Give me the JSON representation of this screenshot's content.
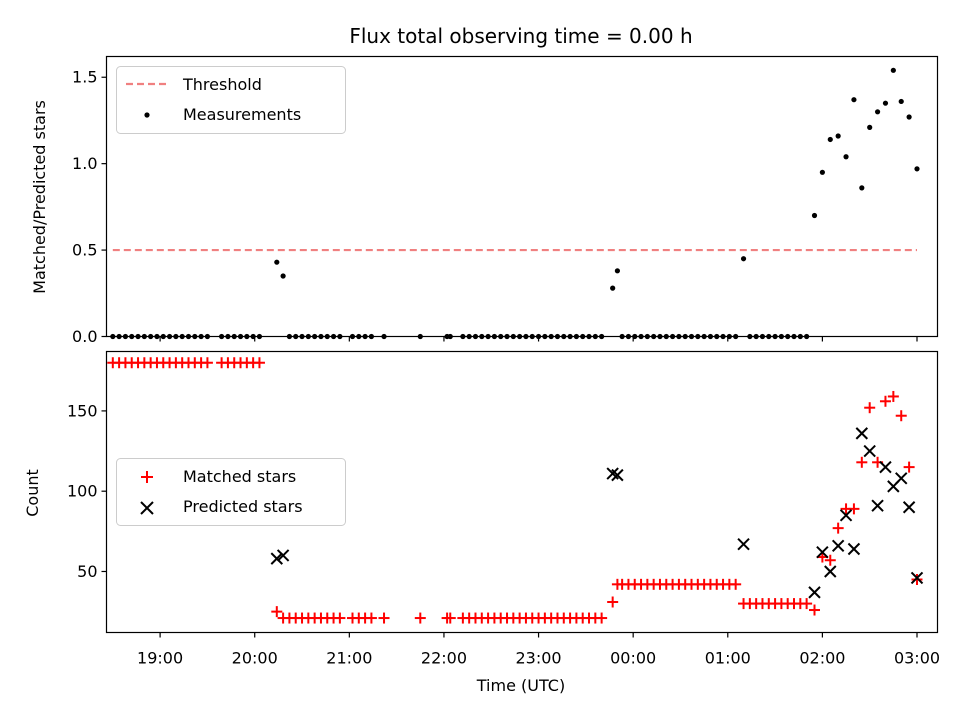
{
  "chart_data": [
    {
      "type": "scatter",
      "title": "Flux total observing time = 0.00 h",
      "xlabel": "",
      "ylabel": "Matched/Predicted stars",
      "xlim": [
        "18:26",
        "03:13"
      ],
      "ylim": [
        0,
        1.62
      ],
      "yticks": [
        0.0,
        0.5,
        1.0,
        1.5
      ],
      "ytick_labels": [
        "0.0",
        "0.5",
        "1.0",
        "1.5"
      ],
      "legend_placement": "top-left",
      "threshold": {
        "name": "Threshold",
        "value": 0.5,
        "x_range": [
          "18:30",
          "03:00"
        ],
        "color": "#f08080"
      },
      "series": [
        {
          "name": "Measurements",
          "color": "#000000",
          "points": [
            [
              "18:30",
              0
            ],
            [
              "18:34",
              0
            ],
            [
              "18:38",
              0
            ],
            [
              "18:42",
              0
            ],
            [
              "18:46",
              0
            ],
            [
              "18:50",
              0
            ],
            [
              "18:54",
              0
            ],
            [
              "18:58",
              0
            ],
            [
              "19:02",
              0
            ],
            [
              "19:06",
              0
            ],
            [
              "19:10",
              0
            ],
            [
              "19:14",
              0
            ],
            [
              "19:18",
              0
            ],
            [
              "19:22",
              0
            ],
            [
              "19:26",
              0
            ],
            [
              "19:30",
              0
            ],
            [
              "19:39",
              0
            ],
            [
              "19:43",
              0
            ],
            [
              "19:47",
              0
            ],
            [
              "19:51",
              0
            ],
            [
              "19:55",
              0
            ],
            [
              "19:59",
              0
            ],
            [
              "20:03",
              0
            ],
            [
              "20:14",
              0.43
            ],
            [
              "20:18",
              0.35
            ],
            [
              "20:22",
              0
            ],
            [
              "20:26",
              0
            ],
            [
              "20:30",
              0
            ],
            [
              "20:34",
              0
            ],
            [
              "20:38",
              0
            ],
            [
              "20:42",
              0
            ],
            [
              "20:46",
              0
            ],
            [
              "20:50",
              0
            ],
            [
              "20:54",
              0
            ],
            [
              "21:02",
              0
            ],
            [
              "21:06",
              0
            ],
            [
              "21:10",
              0
            ],
            [
              "21:14",
              0
            ],
            [
              "21:22",
              0
            ],
            [
              "21:45",
              0
            ],
            [
              "22:02",
              0
            ],
            [
              "22:04",
              0
            ],
            [
              "22:12",
              0
            ],
            [
              "22:16",
              0
            ],
            [
              "22:20",
              0
            ],
            [
              "22:24",
              0
            ],
            [
              "22:28",
              0
            ],
            [
              "22:32",
              0
            ],
            [
              "22:36",
              0
            ],
            [
              "22:40",
              0
            ],
            [
              "22:44",
              0
            ],
            [
              "22:48",
              0
            ],
            [
              "22:52",
              0
            ],
            [
              "22:56",
              0
            ],
            [
              "23:00",
              0
            ],
            [
              "23:04",
              0
            ],
            [
              "23:08",
              0
            ],
            [
              "23:12",
              0
            ],
            [
              "23:16",
              0
            ],
            [
              "23:20",
              0
            ],
            [
              "23:24",
              0
            ],
            [
              "23:28",
              0
            ],
            [
              "23:32",
              0
            ],
            [
              "23:36",
              0
            ],
            [
              "23:40",
              0
            ],
            [
              "23:47",
              0.28
            ],
            [
              "23:50",
              0.38
            ],
            [
              "23:53",
              0
            ],
            [
              "23:57",
              0
            ],
            [
              "00:01",
              0
            ],
            [
              "00:05",
              0
            ],
            [
              "00:09",
              0
            ],
            [
              "00:13",
              0
            ],
            [
              "00:17",
              0
            ],
            [
              "00:21",
              0
            ],
            [
              "00:25",
              0
            ],
            [
              "00:29",
              0
            ],
            [
              "00:33",
              0
            ],
            [
              "00:37",
              0
            ],
            [
              "00:41",
              0
            ],
            [
              "00:45",
              0
            ],
            [
              "00:49",
              0
            ],
            [
              "00:53",
              0
            ],
            [
              "00:57",
              0
            ],
            [
              "01:01",
              0
            ],
            [
              "01:05",
              0
            ],
            [
              "01:10",
              0.45
            ],
            [
              "01:14",
              0
            ],
            [
              "01:18",
              0
            ],
            [
              "01:22",
              0
            ],
            [
              "01:26",
              0
            ],
            [
              "01:30",
              0
            ],
            [
              "01:34",
              0
            ],
            [
              "01:38",
              0
            ],
            [
              "01:42",
              0
            ],
            [
              "01:46",
              0
            ],
            [
              "01:50",
              0
            ],
            [
              "01:55",
              0.7
            ],
            [
              "02:00",
              0.95
            ],
            [
              "02:05",
              1.14
            ],
            [
              "02:10",
              1.16
            ],
            [
              "02:15",
              1.04
            ],
            [
              "02:20",
              1.37
            ],
            [
              "02:25",
              0.86
            ],
            [
              "02:30",
              1.21
            ],
            [
              "02:35",
              1.3
            ],
            [
              "02:40",
              1.35
            ],
            [
              "02:45",
              1.54
            ],
            [
              "02:50",
              1.36
            ],
            [
              "02:55",
              1.27
            ],
            [
              "03:00",
              0.97
            ]
          ]
        }
      ]
    },
    {
      "type": "scatter",
      "title": "",
      "xlabel": "Time (UTC)",
      "ylabel": "Count",
      "xlim": [
        "18:26",
        "03:13"
      ],
      "ylim": [
        12,
        187
      ],
      "yticks": [
        50,
        100,
        150
      ],
      "ytick_labels": [
        "50",
        "100",
        "150"
      ],
      "xticks": [
        "19:00",
        "20:00",
        "21:00",
        "22:00",
        "23:00",
        "00:00",
        "01:00",
        "02:00",
        "03:00"
      ],
      "legend_placement": "center-left",
      "series": [
        {
          "name": "Matched stars",
          "marker": "plus",
          "color": "#ff0000",
          "points": [
            [
              "18:30",
              180
            ],
            [
              "18:34",
              180
            ],
            [
              "18:38",
              180
            ],
            [
              "18:42",
              180
            ],
            [
              "18:46",
              180
            ],
            [
              "18:50",
              180
            ],
            [
              "18:54",
              180
            ],
            [
              "18:58",
              180
            ],
            [
              "19:02",
              180
            ],
            [
              "19:06",
              180
            ],
            [
              "19:10",
              180
            ],
            [
              "19:14",
              180
            ],
            [
              "19:18",
              180
            ],
            [
              "19:22",
              180
            ],
            [
              "19:26",
              180
            ],
            [
              "19:30",
              180
            ],
            [
              "19:39",
              180
            ],
            [
              "19:43",
              180
            ],
            [
              "19:47",
              180
            ],
            [
              "19:51",
              180
            ],
            [
              "19:55",
              180
            ],
            [
              "19:59",
              180
            ],
            [
              "20:03",
              180
            ],
            [
              "20:14",
              25
            ],
            [
              "20:18",
              21
            ],
            [
              "20:22",
              21
            ],
            [
              "20:26",
              21
            ],
            [
              "20:30",
              21
            ],
            [
              "20:34",
              21
            ],
            [
              "20:38",
              21
            ],
            [
              "20:42",
              21
            ],
            [
              "20:46",
              21
            ],
            [
              "20:50",
              21
            ],
            [
              "20:54",
              21
            ],
            [
              "21:02",
              21
            ],
            [
              "21:06",
              21
            ],
            [
              "21:10",
              21
            ],
            [
              "21:14",
              21
            ],
            [
              "21:22",
              21
            ],
            [
              "21:45",
              21
            ],
            [
              "22:02",
              21
            ],
            [
              "22:04",
              21
            ],
            [
              "22:12",
              21
            ],
            [
              "22:16",
              21
            ],
            [
              "22:20",
              21
            ],
            [
              "22:24",
              21
            ],
            [
              "22:28",
              21
            ],
            [
              "22:32",
              21
            ],
            [
              "22:36",
              21
            ],
            [
              "22:40",
              21
            ],
            [
              "22:44",
              21
            ],
            [
              "22:48",
              21
            ],
            [
              "22:52",
              21
            ],
            [
              "22:56",
              21
            ],
            [
              "23:00",
              21
            ],
            [
              "23:04",
              21
            ],
            [
              "23:08",
              21
            ],
            [
              "23:12",
              21
            ],
            [
              "23:16",
              21
            ],
            [
              "23:20",
              21
            ],
            [
              "23:24",
              21
            ],
            [
              "23:28",
              21
            ],
            [
              "23:32",
              21
            ],
            [
              "23:36",
              21
            ],
            [
              "23:40",
              21
            ],
            [
              "23:47",
              31
            ],
            [
              "23:50",
              42
            ],
            [
              "23:53",
              42
            ],
            [
              "23:57",
              42
            ],
            [
              "00:01",
              42
            ],
            [
              "00:05",
              42
            ],
            [
              "00:09",
              42
            ],
            [
              "00:13",
              42
            ],
            [
              "00:17",
              42
            ],
            [
              "00:21",
              42
            ],
            [
              "00:25",
              42
            ],
            [
              "00:29",
              42
            ],
            [
              "00:33",
              42
            ],
            [
              "00:37",
              42
            ],
            [
              "00:41",
              42
            ],
            [
              "00:45",
              42
            ],
            [
              "00:49",
              42
            ],
            [
              "00:53",
              42
            ],
            [
              "00:57",
              42
            ],
            [
              "01:01",
              42
            ],
            [
              "01:05",
              42
            ],
            [
              "01:10",
              30
            ],
            [
              "01:14",
              30
            ],
            [
              "01:18",
              30
            ],
            [
              "01:22",
              30
            ],
            [
              "01:26",
              30
            ],
            [
              "01:30",
              30
            ],
            [
              "01:34",
              30
            ],
            [
              "01:38",
              30
            ],
            [
              "01:42",
              30
            ],
            [
              "01:46",
              30
            ],
            [
              "01:50",
              30
            ],
            [
              "01:55",
              26
            ],
            [
              "02:00",
              59
            ],
            [
              "02:05",
              57
            ],
            [
              "02:10",
              77
            ],
            [
              "02:15",
              89
            ],
            [
              "02:20",
              89
            ],
            [
              "02:25",
              118
            ],
            [
              "02:30",
              152
            ],
            [
              "02:35",
              118
            ],
            [
              "02:40",
              156
            ],
            [
              "02:45",
              159
            ],
            [
              "02:50",
              147
            ],
            [
              "02:55",
              115
            ],
            [
              "03:00",
              45
            ]
          ]
        },
        {
          "name": "Predicted stars",
          "marker": "x",
          "color": "#000000",
          "points": [
            [
              "20:14",
              58
            ],
            [
              "20:18",
              60
            ],
            [
              "23:47",
              111
            ],
            [
              "23:50",
              110
            ],
            [
              "01:10",
              67
            ],
            [
              "01:55",
              37
            ],
            [
              "02:00",
              62
            ],
            [
              "02:05",
              50
            ],
            [
              "02:10",
              66
            ],
            [
              "02:15",
              85
            ],
            [
              "02:20",
              64
            ],
            [
              "02:25",
              136
            ],
            [
              "02:30",
              125
            ],
            [
              "02:35",
              91
            ],
            [
              "02:40",
              115
            ],
            [
              "02:45",
              103
            ],
            [
              "02:50",
              108
            ],
            [
              "02:55",
              90
            ],
            [
              "03:00",
              46
            ]
          ]
        }
      ]
    }
  ]
}
